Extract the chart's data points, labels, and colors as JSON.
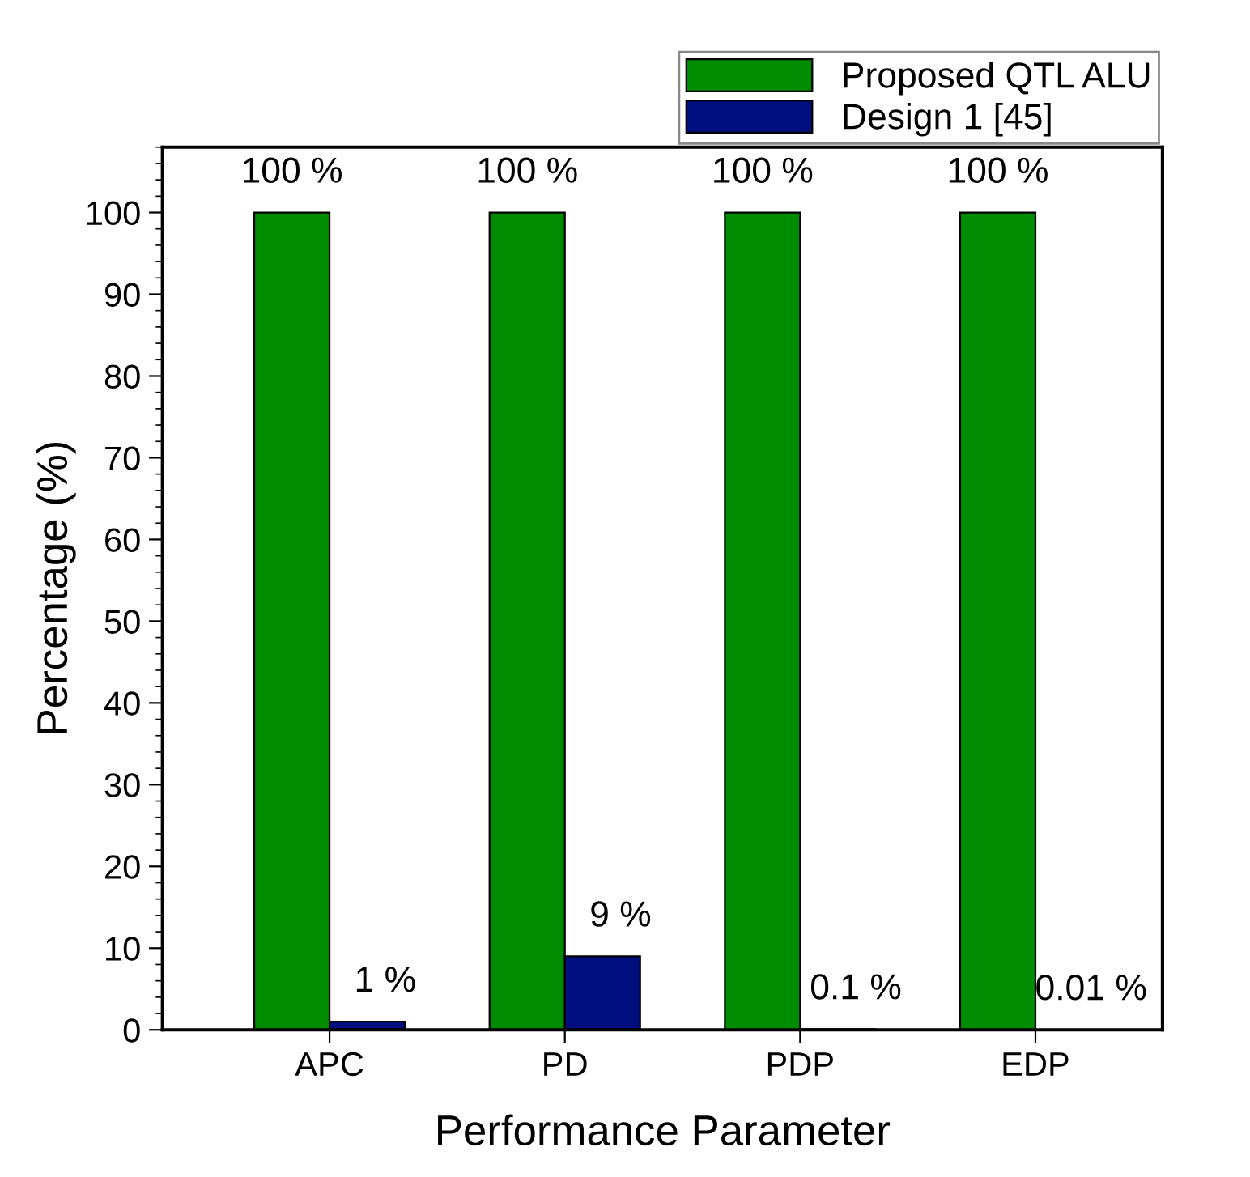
{
  "chart_data": {
    "type": "bar",
    "xlabel": "Performance Parameter",
    "ylabel": "Percentage (%)",
    "categories": [
      "APC",
      "PD",
      "PDP",
      "EDP"
    ],
    "series": [
      {
        "name": "Proposed QTL ALU",
        "color": "#008c00",
        "values": [
          100,
          100,
          100,
          100
        ],
        "value_labels": [
          "100 %",
          "100 %",
          "100 %",
          "100 %"
        ]
      },
      {
        "name": "Design 1 [45]",
        "color": "#000f80",
        "values": [
          1,
          9,
          0.1,
          0.01
        ],
        "value_labels": [
          "1 %",
          "9 %",
          "0.1 %",
          "0.01 %"
        ]
      }
    ],
    "ylim": [
      0,
      108
    ],
    "yticks": [
      0,
      10,
      20,
      30,
      40,
      50,
      60,
      70,
      80,
      90,
      100
    ],
    "grid": false,
    "legend": "top right"
  }
}
